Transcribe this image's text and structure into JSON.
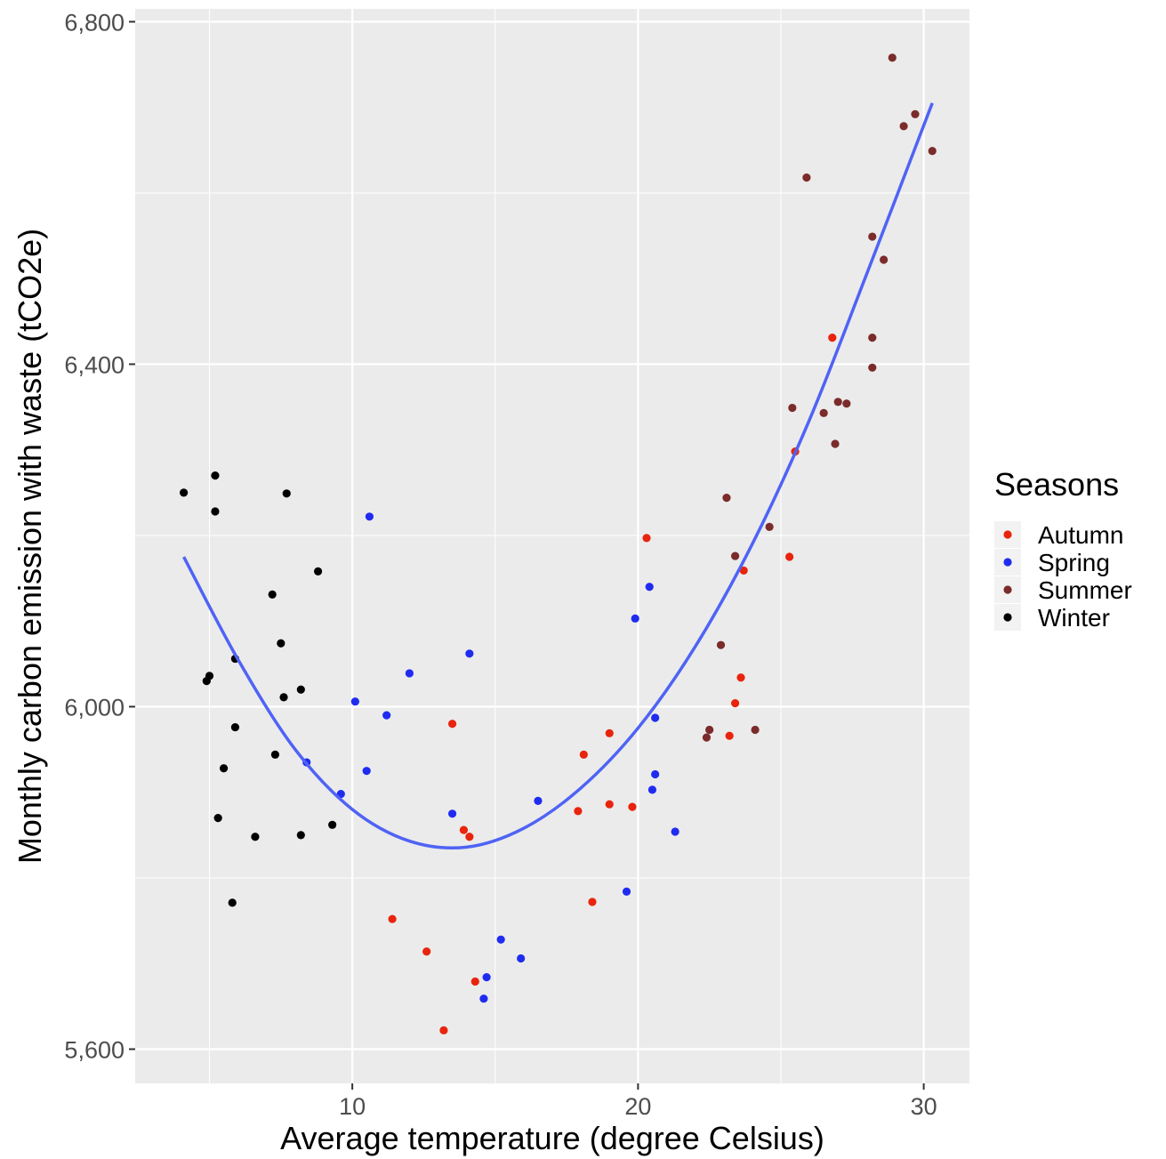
{
  "chart_data": {
    "type": "scatter",
    "xlabel": "Average temperature (degree Celsius)",
    "ylabel": "Monthly carbon emission with waste (tCO2e)",
    "xlim": [
      2.4,
      31.6
    ],
    "ylim": [
      5560,
      6815
    ],
    "x_ticks": [
      10,
      20,
      30
    ],
    "x_tick_labels": [
      "10",
      "20",
      "30"
    ],
    "y_ticks": [
      5600,
      6000,
      6400,
      6800
    ],
    "y_tick_labels": [
      "5,600",
      "6,000",
      "6,400",
      "6,800"
    ],
    "grid": true,
    "background": "#ebebeb",
    "legend": {
      "title": "Seasons",
      "placement": "right"
    },
    "series": [
      {
        "name": "Autumn",
        "color": "#e8240d",
        "points": [
          [
            13.5,
            5980
          ],
          [
            11.4,
            5752
          ],
          [
            12.6,
            5714
          ],
          [
            13.2,
            5622
          ],
          [
            14.3,
            5679
          ],
          [
            13.9,
            5856
          ],
          [
            14.1,
            5848
          ],
          [
            18.1,
            5944
          ],
          [
            17.9,
            5878
          ],
          [
            18.4,
            5772
          ],
          [
            19.0,
            5969
          ],
          [
            19.0,
            5886
          ],
          [
            19.8,
            5883
          ],
          [
            20.3,
            6197
          ],
          [
            23.4,
            6004
          ],
          [
            23.6,
            6034
          ],
          [
            23.7,
            6159
          ],
          [
            23.2,
            5966
          ],
          [
            25.3,
            6175
          ],
          [
            25.5,
            6298
          ],
          [
            26.8,
            6431
          ]
        ]
      },
      {
        "name": "Spring",
        "color": "#1f2cf0",
        "points": [
          [
            8.4,
            5935
          ],
          [
            9.6,
            5898
          ],
          [
            10.1,
            6006
          ],
          [
            10.5,
            5925
          ],
          [
            10.6,
            6222
          ],
          [
            11.2,
            5990
          ],
          [
            12.0,
            6039
          ],
          [
            13.5,
            5875
          ],
          [
            14.1,
            6062
          ],
          [
            14.6,
            5659
          ],
          [
            14.7,
            5684
          ],
          [
            15.2,
            5728
          ],
          [
            15.9,
            5706
          ],
          [
            16.5,
            5890
          ],
          [
            19.6,
            5784
          ],
          [
            19.9,
            6103
          ],
          [
            20.4,
            6140
          ],
          [
            20.5,
            5903
          ],
          [
            20.6,
            5921
          ],
          [
            20.6,
            5987
          ],
          [
            21.3,
            5854
          ]
        ]
      },
      {
        "name": "Summer",
        "color": "#7b2b2b",
        "points": [
          [
            22.4,
            5964
          ],
          [
            22.5,
            5973
          ],
          [
            22.9,
            6072
          ],
          [
            23.1,
            6244
          ],
          [
            23.4,
            6176
          ],
          [
            24.1,
            5973
          ],
          [
            24.6,
            6210
          ],
          [
            25.4,
            6349
          ],
          [
            25.9,
            6618
          ],
          [
            26.5,
            6343
          ],
          [
            26.9,
            6307
          ],
          [
            27.0,
            6356
          ],
          [
            27.3,
            6354
          ],
          [
            28.2,
            6549
          ],
          [
            28.2,
            6431
          ],
          [
            28.2,
            6396
          ],
          [
            28.6,
            6522
          ],
          [
            28.9,
            6758
          ],
          [
            29.3,
            6678
          ],
          [
            29.7,
            6692
          ],
          [
            30.3,
            6649
          ]
        ]
      },
      {
        "name": "Winter",
        "color": "#000000",
        "points": [
          [
            4.1,
            6250
          ],
          [
            4.9,
            6030
          ],
          [
            5.0,
            6036
          ],
          [
            5.2,
            6270
          ],
          [
            5.2,
            6228
          ],
          [
            5.3,
            5870
          ],
          [
            5.5,
            5928
          ],
          [
            5.8,
            5771
          ],
          [
            5.9,
            5976
          ],
          [
            5.9,
            6056
          ],
          [
            6.6,
            5848
          ],
          [
            7.2,
            6131
          ],
          [
            7.3,
            5944
          ],
          [
            7.5,
            6074
          ],
          [
            7.6,
            6011
          ],
          [
            7.7,
            6249
          ],
          [
            8.2,
            5850
          ],
          [
            8.2,
            6020
          ],
          [
            8.8,
            6158
          ],
          [
            9.3,
            5862
          ]
        ]
      }
    ],
    "fit_line": {
      "color": "#4f63f5",
      "type": "quadratic",
      "x_range": [
        4.1,
        30.3
      ],
      "curve": [
        [
          4.1,
          6175
        ],
        [
          6.0,
          6055
        ],
        [
          8.0,
          5950
        ],
        [
          10.0,
          5880
        ],
        [
          12.0,
          5843
        ],
        [
          14.0,
          5836
        ],
        [
          16.0,
          5858
        ],
        [
          18.0,
          5905
        ],
        [
          20.0,
          5975
        ],
        [
          22.0,
          6070
        ],
        [
          24.0,
          6190
        ],
        [
          26.0,
          6335
        ],
        [
          28.0,
          6505
        ],
        [
          30.3,
          6705
        ]
      ]
    }
  }
}
